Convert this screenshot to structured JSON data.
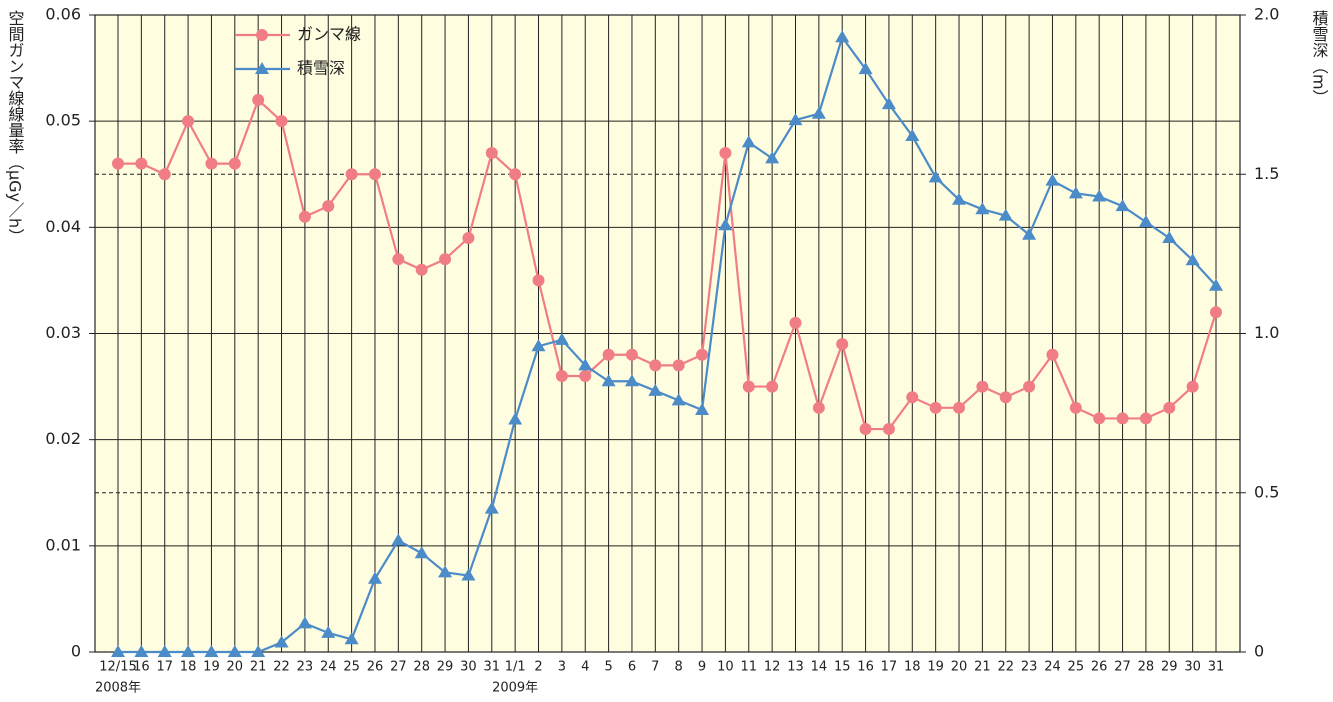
{
  "chart_data": {
    "type": "line",
    "y_label": "空間ガンマ線線量率（μGy／h）",
    "y2_label": "積雪深（m）",
    "categories": [
      "12/15",
      "16",
      "17",
      "18",
      "19",
      "20",
      "21",
      "22",
      "23",
      "24",
      "25",
      "26",
      "27",
      "28",
      "29",
      "30",
      "31",
      "1/1",
      "2",
      "3",
      "4",
      "5",
      "6",
      "7",
      "8",
      "9",
      "10",
      "11",
      "12",
      "13",
      "14",
      "15",
      "16",
      "17",
      "18",
      "19",
      "20",
      "21",
      "22",
      "23",
      "24",
      "25",
      "26",
      "27",
      "28",
      "29",
      "30",
      "31"
    ],
    "annotations": [
      {
        "text": "2008年",
        "x": "12/15"
      },
      {
        "text": "2009年",
        "x": "1/1"
      }
    ],
    "series": [
      {
        "name": "ガンマ線",
        "color": "#f07d86",
        "marker": "circle",
        "values": [
          0.046,
          0.046,
          0.045,
          0.05,
          0.046,
          0.046,
          0.052,
          0.05,
          0.041,
          0.042,
          0.045,
          0.045,
          0.037,
          0.036,
          0.037,
          0.039,
          0.047,
          0.045,
          0.035,
          0.026,
          0.026,
          0.028,
          0.028,
          0.027,
          0.027,
          0.028,
          0.047,
          0.025,
          0.025,
          0.031,
          0.023,
          0.029,
          0.021,
          0.021,
          0.024,
          0.023,
          0.023,
          0.025,
          0.024,
          0.025,
          0.028,
          0.023,
          0.022,
          0.022,
          0.022,
          0.023,
          0.025,
          0.032
        ]
      },
      {
        "name": "積雪深",
        "color": "#4a8bc8",
        "marker": "triangle",
        "axis": "y2",
        "values": [
          0,
          0,
          0,
          0,
          0,
          0,
          0,
          0.03,
          0.09,
          0.06,
          0.04,
          0.23,
          0.35,
          0.31,
          0.25,
          0.24,
          0.45,
          0.73,
          0.96,
          0.98,
          0.9,
          0.85,
          0.85,
          0.82,
          0.79,
          0.76,
          1.34,
          1.6,
          1.55,
          1.67,
          1.69,
          1.93,
          1.83,
          1.72,
          1.62,
          1.49,
          1.42,
          1.39,
          1.37,
          1.31,
          1.48,
          1.44,
          1.43,
          1.4,
          1.35,
          1.3,
          1.23,
          1.15
        ]
      }
    ],
    "ylim": [
      0,
      0.06
    ],
    "yticks": [
      0,
      0.01,
      0.02,
      0.03,
      0.04,
      0.05,
      0.06
    ],
    "y2lim": [
      0,
      2
    ],
    "y2ticks": [
      0,
      0.5,
      {
        "value": 1,
        "label": "1.0"
      },
      1.5,
      {
        "value": 2,
        "label": "2.0"
      }
    ],
    "grid": true,
    "plot_background": "#fffde0",
    "legend": "top-left"
  }
}
